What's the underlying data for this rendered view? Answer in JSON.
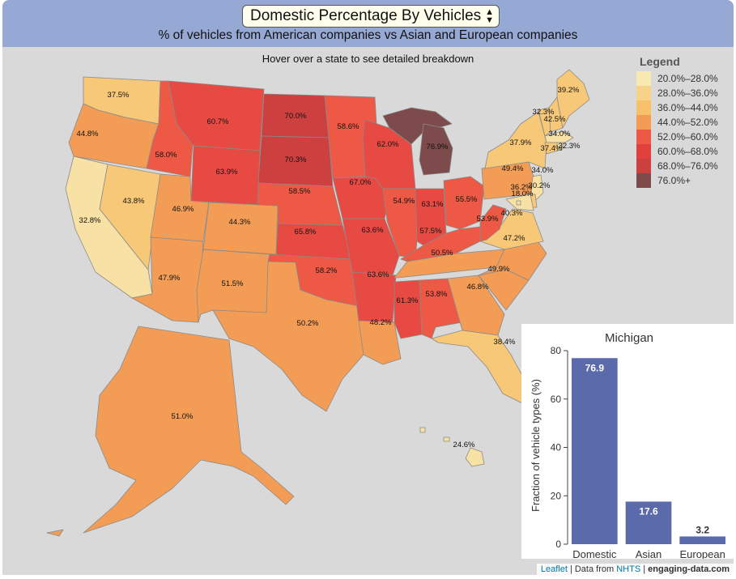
{
  "header": {
    "selected_metric": "Domestic Percentage By Vehicles",
    "subtitle": "% of vehicles from American companies vs Asian and European companies"
  },
  "map": {
    "hover_note": "Hover over a state to see detailed breakdown",
    "states": [
      {
        "id": "WA",
        "value": "37.5%",
        "color": "#f7c878"
      },
      {
        "id": "OR",
        "value": "44.8%",
        "color": "#f39c56"
      },
      {
        "id": "CA",
        "value": "32.8%",
        "color": "#f8e1a4"
      },
      {
        "id": "ID",
        "value": "58.0%",
        "color": "#ed5945"
      },
      {
        "id": "NV",
        "value": "43.8%",
        "color": "#f7c878"
      },
      {
        "id": "MT",
        "value": "60.7%",
        "color": "#e74a42"
      },
      {
        "id": "WY",
        "value": "63.9%",
        "color": "#e74a42"
      },
      {
        "id": "UT",
        "value": "46.9%",
        "color": "#f39c56"
      },
      {
        "id": "AZ",
        "value": "47.9%",
        "color": "#f39c56"
      },
      {
        "id": "CO",
        "value": "44.3%",
        "color": "#f39c56"
      },
      {
        "id": "NM",
        "value": "51.5%",
        "color": "#f39c56"
      },
      {
        "id": "ND",
        "value": "70.0%",
        "color": "#cc4040"
      },
      {
        "id": "SD",
        "value": "70.3%",
        "color": "#cc4040"
      },
      {
        "id": "NE",
        "value": "58.5%",
        "color": "#ed5945"
      },
      {
        "id": "KS",
        "value": "65.8%",
        "color": "#e74a42"
      },
      {
        "id": "OK",
        "value": "58.2%",
        "color": "#ed5945"
      },
      {
        "id": "TX",
        "value": "50.2%",
        "color": "#f39c56"
      },
      {
        "id": "MN",
        "value": "58.6%",
        "color": "#ed5945"
      },
      {
        "id": "IA",
        "value": "67.0%",
        "color": "#e74a42"
      },
      {
        "id": "MO",
        "value": "63.6%",
        "color": "#e74a42"
      },
      {
        "id": "AR",
        "value": "63.6%",
        "color": "#e74a42"
      },
      {
        "id": "LA",
        "value": "48.2%",
        "color": "#f39c56"
      },
      {
        "id": "WI",
        "value": "62.0%",
        "color": "#e74a42"
      },
      {
        "id": "IL",
        "value": "54.9%",
        "color": "#ed5945"
      },
      {
        "id": "MI",
        "value": "76.9%",
        "color": "#7d4b4b"
      },
      {
        "id": "IN",
        "value": "63.1%",
        "color": "#e74a42"
      },
      {
        "id": "OH",
        "value": "55.5%",
        "color": "#ed5945"
      },
      {
        "id": "KY",
        "value": "57.5%",
        "color": "#ed5945"
      },
      {
        "id": "TN",
        "value": "50.5%",
        "color": "#f39c56"
      },
      {
        "id": "MS",
        "value": "61.3%",
        "color": "#e74a42"
      },
      {
        "id": "AL",
        "value": "53.8%",
        "color": "#ed5945"
      },
      {
        "id": "GA",
        "value": "46.8%",
        "color": "#f39c56"
      },
      {
        "id": "FL",
        "value": "38.4%",
        "color": "#f7c878"
      },
      {
        "id": "SC",
        "value": "49.9%",
        "color": "#f39c56"
      },
      {
        "id": "NC",
        "value": "47.2%",
        "color": "#f39c56"
      },
      {
        "id": "VA",
        "value": "40.3%",
        "color": "#f7c878"
      },
      {
        "id": "WV",
        "value": "53.9%",
        "color": "#ed5945"
      },
      {
        "id": "PA",
        "value": "49.4%",
        "color": "#f39c56"
      },
      {
        "id": "NY",
        "value": "37.9%",
        "color": "#f7c878"
      },
      {
        "id": "VT",
        "value": "32.3%",
        "color": "#f7c878"
      },
      {
        "id": "NH",
        "value": "42.5%",
        "color": "#f7c878"
      },
      {
        "id": "ME",
        "value": "39.2%",
        "color": "#f7c878"
      },
      {
        "id": "MA",
        "value": "34.0%",
        "color": "#f8e1a4"
      },
      {
        "id": "CT",
        "value": "37.4%",
        "color": "#f7c878"
      },
      {
        "id": "RI",
        "value": "32.3%",
        "color": "#f8e1a4"
      },
      {
        "id": "NJ",
        "value": "34.0%",
        "color": "#f8e1a4"
      },
      {
        "id": "DE",
        "value": "36.2%",
        "color": "#f7c878"
      },
      {
        "id": "MD",
        "value": "30.2%",
        "color": "#f8e1a4"
      },
      {
        "id": "DC",
        "value": "18.0%",
        "color": "#f8e1a4"
      },
      {
        "id": "AK",
        "value": "51.0%",
        "color": "#f39c56"
      },
      {
        "id": "HI",
        "value": "24.6%",
        "color": "#f8e1a4"
      }
    ]
  },
  "legend": {
    "title": "Legend",
    "items": [
      {
        "label": "20.0%–28.0%",
        "color": "#f8e9b0"
      },
      {
        "label": "28.0%–36.0%",
        "color": "#f7d389"
      },
      {
        "label": "36.0%–44.0%",
        "color": "#f7c06a"
      },
      {
        "label": "44.0%–52.0%",
        "color": "#f39c56"
      },
      {
        "label": "52.0%–60.0%",
        "color": "#ed5945"
      },
      {
        "label": "60.0%–68.0%",
        "color": "#e2403c"
      },
      {
        "label": "68.0%–76.0%",
        "color": "#cc4040"
      },
      {
        "label": "76.0%+",
        "color": "#7d4b4b"
      }
    ]
  },
  "chart_data": {
    "type": "bar",
    "title": "Michigan",
    "categories": [
      "Domestic",
      "Asian",
      "European"
    ],
    "values": [
      76.9,
      17.6,
      3.2
    ],
    "value_labels": [
      "76.9",
      "17.6",
      "3.2"
    ],
    "ylabel": "Fraction of vehicle types (%)",
    "xlabel": "",
    "ylim": [
      0,
      80
    ],
    "yticks": [
      0,
      20,
      40,
      60,
      80
    ],
    "ytick_labels": [
      "0",
      "20",
      "40",
      "60",
      "80"
    ],
    "bar_color": "#5a6aaa"
  },
  "attribution": {
    "leaflet": "Leaflet",
    "data_from": "| Data from",
    "source": "NHTS",
    "site": "engaging-data.com"
  }
}
